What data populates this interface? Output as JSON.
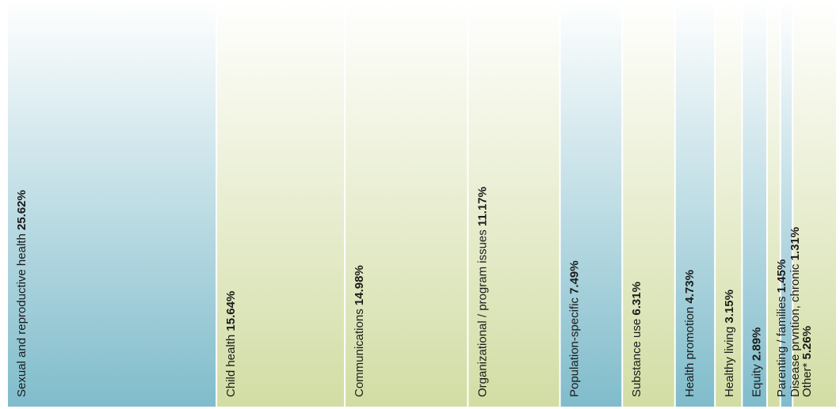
{
  "chart_data": {
    "type": "bar",
    "orientation": "proportional-columns",
    "title": "",
    "categories": [
      "Sexual and reproductive health",
      "Child health",
      "Communications",
      "Organizational / program issues",
      "Population-specific",
      "Substance use",
      "Health promotion",
      "Healthy living",
      "Equity",
      "Parenting / families",
      "Disease prvntion, chronic",
      "Other*"
    ],
    "values": [
      25.62,
      15.64,
      14.98,
      11.17,
      7.49,
      6.31,
      4.73,
      3.15,
      2.89,
      1.45,
      1.31,
      5.26
    ],
    "value_labels": [
      "25.62%",
      "15.64%",
      "14.98%",
      "11.17%",
      "7.49%",
      "6.31%",
      "4.73%",
      "3.15%",
      "2.89%",
      "1.45%",
      "1.31%",
      "5.26%"
    ],
    "colors": [
      "blue",
      "green",
      "green",
      "green",
      "blue",
      "green",
      "blue",
      "green",
      "blue",
      "green",
      "blue",
      "green"
    ],
    "palette": {
      "blue_top": "#ffffff",
      "blue_bottom": "#80bccb",
      "green_top": "#ffffff",
      "green_bottom": "#d2dda4"
    },
    "grid": false,
    "legend": "none"
  }
}
